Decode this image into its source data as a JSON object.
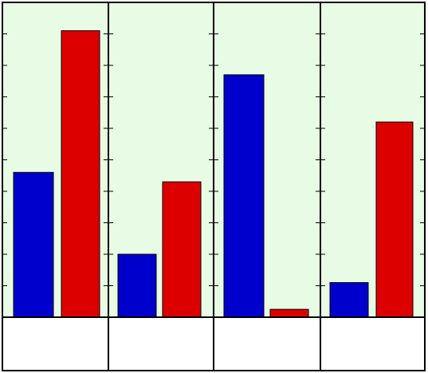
{
  "colors": {
    "plot_background": "#e8fbe4",
    "grid": "#000000",
    "series_a": "#0000cc",
    "series_b": "#dd0000"
  },
  "chart_data": {
    "type": "bar",
    "categories": [
      "",
      "",
      "",
      ""
    ],
    "series": [
      {
        "values": [
          4.6,
          2.0,
          7.7,
          1.1
        ]
      },
      {
        "values": [
          9.1,
          4.3,
          0.25,
          6.2
        ]
      }
    ],
    "title": "",
    "xlabel": "",
    "ylabel": "",
    "ylim": [
      0,
      10
    ],
    "grid": true,
    "legend": "none"
  }
}
